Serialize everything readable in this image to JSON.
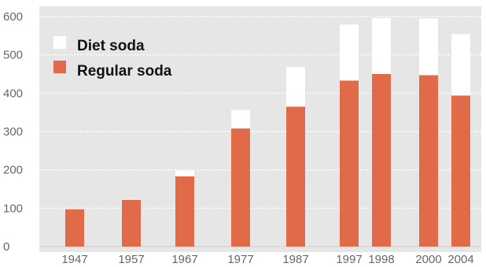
{
  "chart_data": {
    "type": "bar",
    "stacked": true,
    "categories": [
      "1947",
      "1957",
      "1967",
      "1977",
      "1987",
      "1997",
      "1998",
      "2000",
      "2004"
    ],
    "series": [
      {
        "name": "Regular soda",
        "color": "#e16a49",
        "values": [
          97,
          122,
          183,
          308,
          365,
          433,
          450,
          447,
          394
        ]
      },
      {
        "name": "Diet soda",
        "color": "#ffffff",
        "values": [
          0,
          2,
          15,
          48,
          103,
          146,
          146,
          148,
          160
        ]
      }
    ],
    "y_ticks": [
      "0",
      "100",
      "200",
      "300",
      "400",
      "500",
      "600"
    ],
    "ylim": [
      0,
      600
    ],
    "grid": true,
    "legend_position": "top-left",
    "plot_background": "#e6e6e6"
  }
}
